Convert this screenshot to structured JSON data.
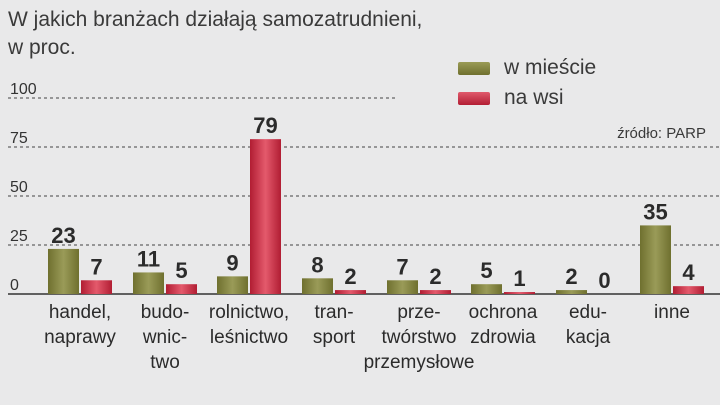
{
  "title_lines": [
    "W jakich branżach działają samozatrudnieni,",
    "w proc."
  ],
  "source": "źródło: PARP",
  "colors": {
    "city": "#7e7f3b",
    "village": "#c0263c",
    "grid": "#444444",
    "axis": "#333333"
  },
  "chart_data": {
    "type": "bar",
    "title": "W jakich branżach działają samozatrudnieni, w proc.",
    "categories": [
      [
        "handel,",
        "naprawy"
      ],
      [
        "budo-",
        "wnic-",
        "two"
      ],
      [
        "rolnictwo,",
        "leśnictwo"
      ],
      [
        "tran-",
        "sport"
      ],
      [
        "prze-",
        "twórstwo",
        "przemysłowe"
      ],
      [
        "ochrona",
        "zdrowia"
      ],
      [
        "edu-",
        "kacja"
      ],
      [
        "inne"
      ]
    ],
    "series": [
      {
        "name": "w mieście",
        "values": [
          23,
          11,
          9,
          8,
          7,
          5,
          2,
          35
        ]
      },
      {
        "name": "na wsi",
        "values": [
          7,
          5,
          79,
          2,
          2,
          1,
          0,
          4
        ]
      }
    ],
    "yticks": [
      0,
      25,
      50,
      75,
      100
    ],
    "ylim": [
      0,
      100
    ],
    "grid": true,
    "legend_position": "top-right"
  }
}
